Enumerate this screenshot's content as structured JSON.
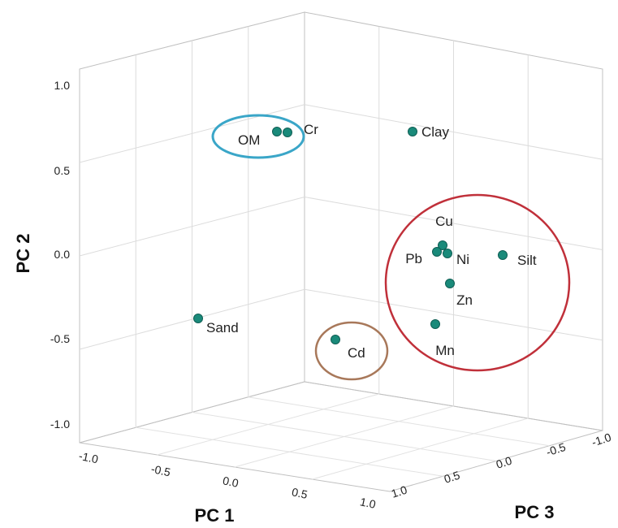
{
  "chart_data": {
    "type": "scatter",
    "title": "",
    "xlabel": "PC 1",
    "ylabel": "PC 2",
    "zlabel": "PC 3",
    "xlim": [
      -1.0,
      1.0
    ],
    "ylim": [
      -1.0,
      1.0
    ],
    "zlim": [
      -1.0,
      1.0
    ],
    "x_ticks": [
      "-1.0",
      "-0.5",
      "0.0",
      "0.5",
      "1.0"
    ],
    "y_ticks": [
      "1.0",
      "0.5",
      "0.0",
      "-0.5",
      "-1.0"
    ],
    "z_ticks": [
      "1.0",
      "0.5",
      "0.0",
      "-0.5",
      "-1.0"
    ],
    "grid": true,
    "marker_color": "#1a8a7a",
    "points": [
      {
        "label": "OM",
        "pc2": 0.71
      },
      {
        "label": "Cr",
        "pc2": 0.71
      },
      {
        "label": "Clay",
        "pc2": 0.71
      },
      {
        "label": "Cu",
        "pc2": 0.04
      },
      {
        "label": "Pb",
        "pc2": 0.0
      },
      {
        "label": "Ni",
        "pc2": 0.0
      },
      {
        "label": "Silt",
        "pc2": -0.01
      },
      {
        "label": "Zn",
        "pc2": -0.18
      },
      {
        "label": "Mn",
        "pc2": -0.43
      },
      {
        "label": "Sand",
        "pc2": -0.39
      },
      {
        "label": "Cd",
        "pc2": -0.51
      }
    ],
    "groups": [
      {
        "members": [
          "OM",
          "Cr"
        ],
        "color": "#3aa6c8"
      },
      {
        "members": [
          "Cu",
          "Pb",
          "Ni",
          "Silt",
          "Zn",
          "Mn"
        ],
        "color": "#c0303a"
      },
      {
        "members": [
          "Cd"
        ],
        "color": "#a8785a"
      }
    ]
  }
}
